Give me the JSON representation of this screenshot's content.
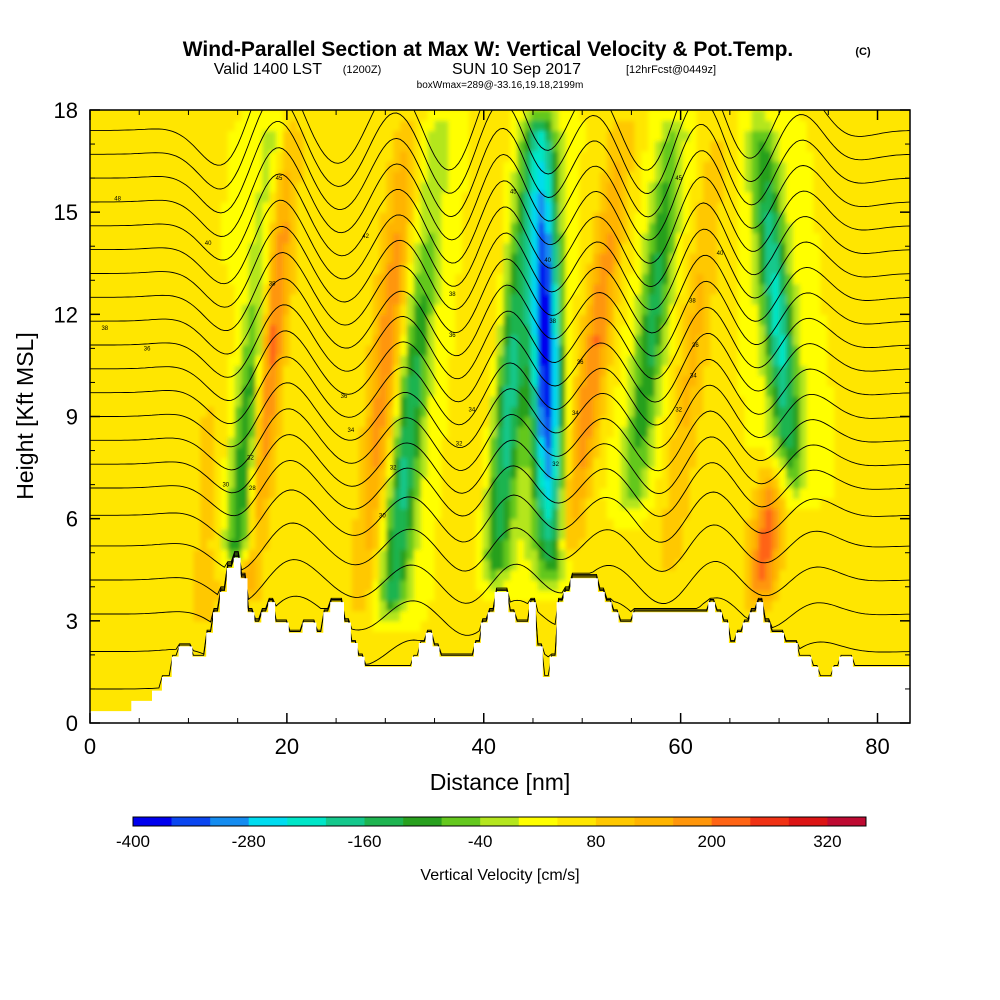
{
  "title": {
    "main": "Wind-Parallel Section at Max W: Vertical Velocity & Pot.Temp.",
    "copyright": "(C)",
    "valid_prefix": "Valid 1400 LST",
    "valid_utc": "(1200Z)",
    "valid_date": "SUN 10 Sep 2017",
    "forecast": "[12hrFcst@0449z]",
    "box_info": "boxWmax=289@-33.16,19.18,2199m"
  },
  "chart_data": {
    "type": "heatmap",
    "xlabel": "Distance [nm]",
    "ylabel": "Height [Kft MSL]",
    "xlim": [
      0,
      83.3
    ],
    "ylim": [
      0,
      18
    ],
    "xticks": [
      "0",
      "20",
      "40",
      "60",
      "80"
    ],
    "yticks": [
      "0",
      "3",
      "6",
      "9",
      "12",
      "15",
      "18"
    ],
    "colorbar": {
      "title": "Vertical Velocity [cm/s]",
      "min": -400,
      "max": 360,
      "step": 40,
      "tick_labels": [
        "-400",
        "-280",
        "-160",
        "-40",
        "80",
        "200",
        "320"
      ],
      "colors": [
        "#0000ee",
        "#0a46f0",
        "#148cf0",
        "#00dcf0",
        "#00e6c8",
        "#14c88c",
        "#1eb450",
        "#28a01e",
        "#64c81e",
        "#b4e61e",
        "#ffff00",
        "#ffe600",
        "#ffc800",
        "#ffb400",
        "#ff960a",
        "#ff6414",
        "#f03214",
        "#dc1414",
        "#be0a32"
      ]
    },
    "terrain_kft": [
      [
        0,
        0.35
      ],
      [
        4.2,
        0.35
      ],
      [
        4.2,
        0.65
      ],
      [
        6.3,
        0.65
      ],
      [
        6.3,
        0.95
      ],
      [
        7.3,
        0.95
      ],
      [
        7.3,
        1.35
      ],
      [
        8.3,
        1.35
      ],
      [
        8.3,
        1.95
      ],
      [
        9.0,
        1.95
      ],
      [
        9.0,
        2.25
      ],
      [
        10.4,
        2.25
      ],
      [
        10.4,
        1.95
      ],
      [
        11.8,
        1.95
      ],
      [
        11.8,
        2.65
      ],
      [
        12.5,
        2.65
      ],
      [
        12.5,
        3.25
      ],
      [
        13.2,
        3.25
      ],
      [
        13.2,
        3.85
      ],
      [
        13.9,
        3.85
      ],
      [
        13.9,
        4.55
      ],
      [
        14.6,
        4.55
      ],
      [
        14.6,
        4.85
      ],
      [
        15.3,
        4.85
      ],
      [
        15.3,
        4.25
      ],
      [
        16.0,
        4.25
      ],
      [
        16.0,
        3.25
      ],
      [
        16.7,
        3.25
      ],
      [
        16.7,
        2.95
      ],
      [
        17.4,
        2.95
      ],
      [
        17.4,
        3.25
      ],
      [
        18.1,
        3.25
      ],
      [
        18.1,
        3.55
      ],
      [
        18.8,
        3.55
      ],
      [
        18.8,
        2.95
      ],
      [
        20.2,
        2.95
      ],
      [
        20.2,
        2.65
      ],
      [
        21.6,
        2.65
      ],
      [
        21.6,
        2.95
      ],
      [
        23.0,
        2.95
      ],
      [
        23.0,
        2.65
      ],
      [
        23.7,
        2.65
      ],
      [
        23.7,
        3.25
      ],
      [
        24.4,
        3.25
      ],
      [
        24.4,
        3.55
      ],
      [
        25.8,
        3.55
      ],
      [
        25.8,
        2.95
      ],
      [
        26.5,
        2.95
      ],
      [
        26.5,
        2.35
      ],
      [
        27.2,
        2.35
      ],
      [
        27.2,
        1.95
      ],
      [
        27.9,
        1.95
      ],
      [
        27.9,
        1.65
      ],
      [
        32.7,
        1.65
      ],
      [
        32.7,
        1.95
      ],
      [
        33.4,
        1.95
      ],
      [
        33.4,
        2.35
      ],
      [
        34.1,
        2.35
      ],
      [
        34.1,
        2.65
      ],
      [
        34.8,
        2.65
      ],
      [
        34.8,
        2.25
      ],
      [
        35.5,
        2.25
      ],
      [
        35.5,
        1.95
      ],
      [
        39.0,
        1.95
      ],
      [
        39.0,
        2.35
      ],
      [
        39.7,
        2.35
      ],
      [
        39.7,
        2.95
      ],
      [
        40.4,
        2.95
      ],
      [
        40.4,
        3.25
      ],
      [
        41.1,
        3.25
      ],
      [
        41.1,
        3.85
      ],
      [
        42.5,
        3.85
      ],
      [
        42.5,
        3.25
      ],
      [
        43.2,
        3.25
      ],
      [
        43.2,
        2.95
      ],
      [
        44.6,
        2.95
      ],
      [
        44.6,
        3.55
      ],
      [
        45.3,
        3.55
      ],
      [
        45.3,
        2.25
      ],
      [
        46.0,
        2.25
      ],
      [
        46.0,
        1.35
      ],
      [
        46.7,
        1.35
      ],
      [
        46.7,
        1.95
      ],
      [
        47.4,
        1.95
      ],
      [
        47.4,
        3.55
      ],
      [
        48.1,
        3.55
      ],
      [
        48.1,
        3.85
      ],
      [
        48.8,
        3.85
      ],
      [
        48.8,
        4.25
      ],
      [
        51.6,
        4.25
      ],
      [
        51.6,
        3.85
      ],
      [
        52.3,
        3.85
      ],
      [
        52.3,
        3.55
      ],
      [
        53.0,
        3.55
      ],
      [
        53.0,
        3.25
      ],
      [
        53.7,
        3.25
      ],
      [
        53.7,
        2.95
      ],
      [
        55.1,
        2.95
      ],
      [
        55.1,
        3.25
      ],
      [
        62.8,
        3.25
      ],
      [
        62.8,
        3.55
      ],
      [
        63.5,
        3.55
      ],
      [
        63.5,
        3.25
      ],
      [
        64.2,
        3.25
      ],
      [
        64.2,
        2.95
      ],
      [
        64.9,
        2.95
      ],
      [
        64.9,
        2.35
      ],
      [
        65.6,
        2.35
      ],
      [
        65.6,
        2.65
      ],
      [
        66.3,
        2.65
      ],
      [
        66.3,
        2.95
      ],
      [
        67.0,
        2.95
      ],
      [
        67.0,
        3.25
      ],
      [
        67.7,
        3.25
      ],
      [
        67.7,
        3.55
      ],
      [
        68.4,
        3.55
      ],
      [
        68.4,
        2.95
      ],
      [
        69.1,
        2.95
      ],
      [
        69.1,
        2.65
      ],
      [
        70.5,
        2.65
      ],
      [
        70.5,
        2.35
      ],
      [
        71.9,
        2.35
      ],
      [
        71.9,
        1.95
      ],
      [
        73.3,
        1.95
      ],
      [
        73.3,
        1.65
      ],
      [
        74.0,
        1.65
      ],
      [
        74.0,
        1.35
      ],
      [
        75.4,
        1.35
      ],
      [
        75.4,
        1.65
      ],
      [
        76.1,
        1.65
      ],
      [
        76.1,
        1.95
      ],
      [
        77.5,
        1.95
      ],
      [
        77.5,
        1.65
      ],
      [
        83.3,
        1.65
      ]
    ],
    "updrafts": [
      {
        "x_bottom": 15.8,
        "x_top": 20.5,
        "z_low": 3.5,
        "z_high": 18,
        "peak_kft": 10.3,
        "max_cms": 289
      },
      {
        "x_bottom": 27.5,
        "x_top": 32.5,
        "z_low": 2.8,
        "z_high": 18,
        "peak_kft": 11.0,
        "max_cms": 200
      },
      {
        "x_bottom": 38.5,
        "x_top": 42.0,
        "z_low": 3.5,
        "z_high": 18,
        "peak_kft": 12.0,
        "max_cms": 80
      },
      {
        "x_bottom": 48.3,
        "x_top": 54.5,
        "z_low": 4.5,
        "z_high": 18,
        "peak_kft": 10.5,
        "max_cms": 200
      },
      {
        "x_bottom": 58.5,
        "x_top": 64.0,
        "z_low": 4.0,
        "z_high": 18,
        "peak_kft": 11.0,
        "max_cms": 120
      },
      {
        "x_bottom": 68.0,
        "x_top": 69.5,
        "z_low": 3.2,
        "z_high": 8.0,
        "peak_kft": 5.3,
        "max_cms": 220
      },
      {
        "x_bottom": 11.5,
        "x_top": 12.5,
        "z_low": 2.5,
        "z_high": 13.0,
        "peak_kft": 6.0,
        "max_cms": 80
      }
    ],
    "downdrafts": [
      {
        "x_bottom": 15.0,
        "x_top": 19.0,
        "z_low": 4.5,
        "z_high": 18,
        "peak_kft": 7.5,
        "min_cms": -200
      },
      {
        "x_bottom": 30.5,
        "x_top": 35.5,
        "z_low": 3.0,
        "z_high": 18,
        "peak_kft": 7.0,
        "min_cms": -160
      },
      {
        "x_bottom": 41.0,
        "x_top": 45.0,
        "z_low": 4.0,
        "z_high": 18,
        "peak_kft": 9.0,
        "min_cms": -160
      },
      {
        "x_bottom": 46.8,
        "x_top": 45.8,
        "z_low": 4.0,
        "z_high": 18,
        "peak_kft": 11.0,
        "min_cms": -390
      },
      {
        "x_bottom": 55.0,
        "x_top": 59.5,
        "z_low": 6.0,
        "z_high": 18,
        "peak_kft": 12.0,
        "min_cms": -120
      },
      {
        "x_bottom": 71.5,
        "x_top": 68.0,
        "z_low": 6.5,
        "z_high": 18,
        "peak_kft": 12.0,
        "min_cms": -200
      }
    ],
    "theta_contours_k": [
      1.0,
      2.1,
      3.2,
      4.2,
      5.2,
      6.1,
      6.9,
      7.6,
      8.3,
      9.0,
      9.7,
      10.4,
      11.1,
      11.8,
      12.5,
      13.2,
      13.9,
      14.6,
      15.3,
      16.0,
      16.7,
      17.4
    ],
    "contour_labels": [
      {
        "x": 2.8,
        "z": 15.4,
        "text": "48"
      },
      {
        "x": 12.0,
        "z": 14.1,
        "text": "40"
      },
      {
        "x": 1.5,
        "z": 11.6,
        "text": "38"
      },
      {
        "x": 5.8,
        "z": 11.0,
        "text": "36"
      },
      {
        "x": 19.2,
        "z": 16.0,
        "text": "45"
      },
      {
        "x": 18.5,
        "z": 12.9,
        "text": "38"
      },
      {
        "x": 16.3,
        "z": 7.8,
        "text": "32"
      },
      {
        "x": 13.8,
        "z": 7.0,
        "text": "30"
      },
      {
        "x": 16.5,
        "z": 6.9,
        "text": "28"
      },
      {
        "x": 28.0,
        "z": 14.3,
        "text": "42"
      },
      {
        "x": 25.8,
        "z": 9.6,
        "text": "36"
      },
      {
        "x": 26.5,
        "z": 8.6,
        "text": "34"
      },
      {
        "x": 30.8,
        "z": 7.5,
        "text": "32"
      },
      {
        "x": 29.7,
        "z": 6.1,
        "text": "30"
      },
      {
        "x": 36.8,
        "z": 12.6,
        "text": "38"
      },
      {
        "x": 36.8,
        "z": 11.4,
        "text": "36"
      },
      {
        "x": 38.8,
        "z": 9.2,
        "text": "34"
      },
      {
        "x": 37.5,
        "z": 8.2,
        "text": "32"
      },
      {
        "x": 43.0,
        "z": 15.6,
        "text": "45"
      },
      {
        "x": 46.5,
        "z": 13.6,
        "text": "40"
      },
      {
        "x": 47.0,
        "z": 11.8,
        "text": "38"
      },
      {
        "x": 49.8,
        "z": 10.6,
        "text": "36"
      },
      {
        "x": 49.3,
        "z": 9.1,
        "text": "34"
      },
      {
        "x": 47.3,
        "z": 7.6,
        "text": "32"
      },
      {
        "x": 59.8,
        "z": 16.0,
        "text": "45"
      },
      {
        "x": 64.0,
        "z": 13.8,
        "text": "40"
      },
      {
        "x": 61.2,
        "z": 12.4,
        "text": "38"
      },
      {
        "x": 61.5,
        "z": 11.1,
        "text": "36"
      },
      {
        "x": 61.3,
        "z": 10.2,
        "text": "34"
      },
      {
        "x": 59.8,
        "z": 9.2,
        "text": "32"
      }
    ]
  }
}
